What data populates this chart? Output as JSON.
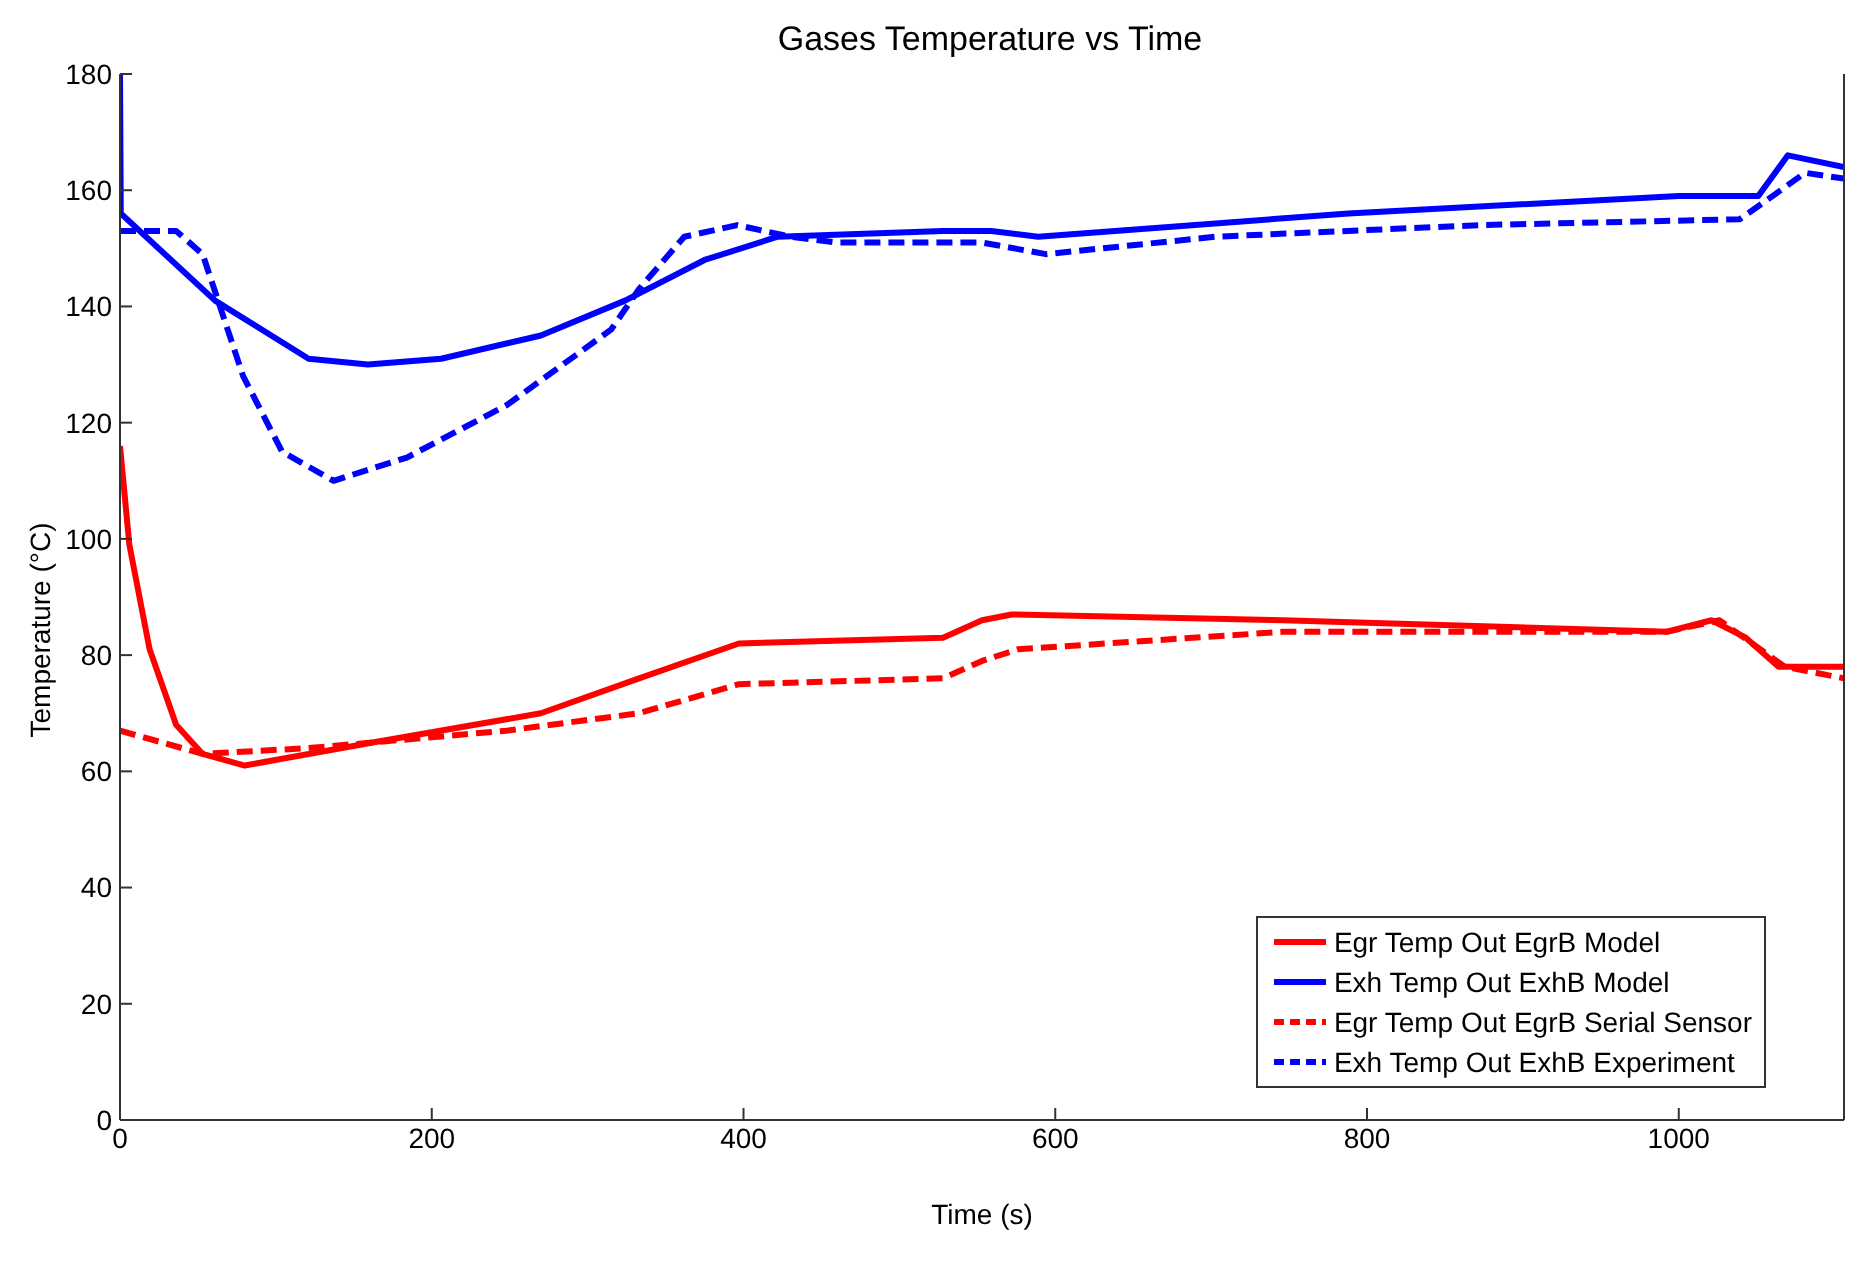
{
  "chart_data": {
    "type": "line",
    "title": "Gases Temperature vs Time",
    "xlabel": "Time (s)",
    "ylabel": "Temperature (°C)",
    "xlim": [
      0,
      1106
    ],
    "xticks": [
      0,
      200,
      400,
      600,
      800,
      1000
    ],
    "ylim": [
      0,
      180
    ],
    "yticks": [
      0,
      20,
      40,
      60,
      80,
      100,
      120,
      140,
      160,
      180
    ],
    "legend": "bottom right",
    "marker": "none",
    "series": [
      {
        "name": "Egr Temp Out EgrB Model",
        "color": "#ff0000",
        "line_style": "solid",
        "x": [
          0,
          6,
          19,
          36,
          53,
          80,
          163,
          270,
          333,
          397,
          528,
          553,
          572,
          746,
          992,
          1021,
          1043,
          1064,
          1106
        ],
        "values": [
          116,
          99,
          81,
          68,
          63,
          61,
          65,
          70,
          76,
          82,
          83,
          86,
          87,
          86,
          84,
          86,
          83,
          78,
          78
        ]
      },
      {
        "name": "Exh Temp Out ExhB Model",
        "color": "#0000ff",
        "line_style": "solid",
        "x": [
          0,
          0.5,
          61,
          121,
          159,
          206,
          270,
          324,
          375,
          422,
          528,
          559,
          589,
          788,
          1000,
          1051,
          1070,
          1106
        ],
        "values": [
          180,
          156,
          141,
          131,
          130,
          131,
          135,
          141,
          148,
          152,
          153,
          153,
          152,
          156,
          159,
          159,
          166,
          164
        ]
      },
      {
        "name": "Egr Temp Out EgrB Serial Sensor",
        "color": "#ff0000",
        "line_style": "dashed",
        "x": [
          0,
          53,
          121,
          248,
          333,
          397,
          528,
          553,
          576,
          746,
          992,
          1026,
          1068,
          1106
        ],
        "values": [
          67,
          63,
          64,
          67,
          70,
          75,
          76,
          79,
          81,
          84,
          84,
          86,
          78,
          76
        ]
      },
      {
        "name": "Exh Temp Out ExhB Experiment",
        "color": "#0000ff",
        "line_style": "dashed",
        "x": [
          0,
          36,
          53,
          79,
          104,
          137,
          184,
          248,
          315,
          333,
          362,
          396,
          430,
          460,
          553,
          594,
          703,
          873,
          1039,
          1055,
          1081,
          1106
        ],
        "values": [
          153,
          153,
          149,
          128,
          115,
          110,
          114,
          123,
          136,
          143,
          152,
          154,
          152,
          151,
          151,
          149,
          152,
          154,
          155,
          158,
          163,
          162
        ]
      }
    ]
  }
}
